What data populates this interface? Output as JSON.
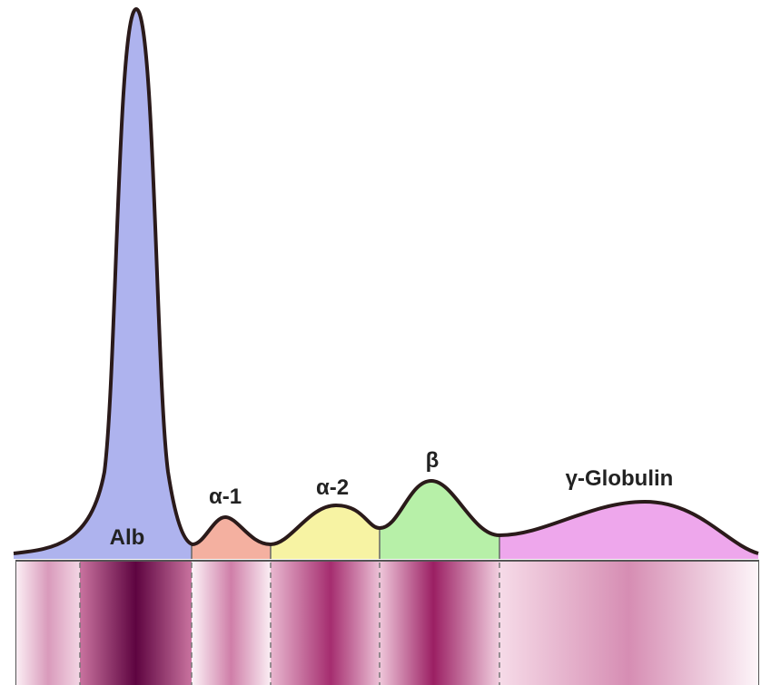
{
  "fractions": [
    {
      "label": "Alb"
    },
    {
      "label": "α-1"
    },
    {
      "label": "α-2"
    },
    {
      "label": "β"
    },
    {
      "label": "γ-Globulin"
    }
  ]
}
